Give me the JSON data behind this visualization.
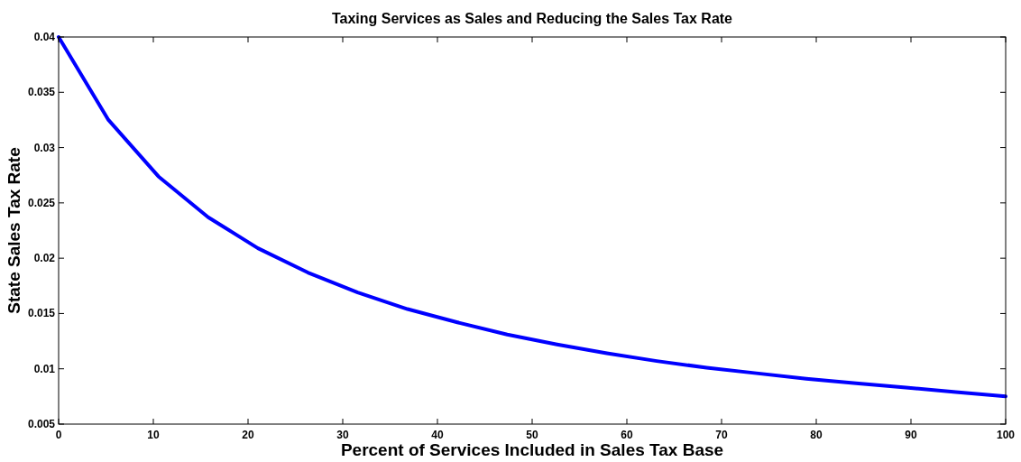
{
  "chart_data": {
    "type": "line",
    "title": "Taxing Services as Sales and Reducing the Sales Tax Rate",
    "xlabel": "Percent of Services Included in Sales Tax Base",
    "ylabel": "State Sales Tax Rate",
    "xlim": [
      0,
      100
    ],
    "xticks": [
      0,
      10,
      20,
      30,
      40,
      50,
      60,
      70,
      80,
      90,
      100
    ],
    "ylim": [
      0.005,
      0.04
    ],
    "yticks": [
      0.005,
      0.01,
      0.015,
      0.02,
      0.025,
      0.03,
      0.035,
      0.04
    ],
    "series": [
      {
        "color": "#0000ff",
        "x": [
          0,
          5.26,
          10.53,
          15.79,
          21.05,
          26.32,
          31.58,
          36.84,
          42.11,
          47.37,
          52.63,
          57.89,
          63.16,
          68.42,
          73.68,
          78.95,
          84.21,
          89.47,
          94.74,
          100
        ],
        "values": [
          0.04,
          0.0325,
          0.0274,
          0.0237,
          0.0209,
          0.0187,
          0.0169,
          0.0154,
          0.0142,
          0.0131,
          0.0122,
          0.0114,
          0.0107,
          0.0101,
          0.0096,
          0.0091,
          0.0087,
          0.0083,
          0.0079,
          0.0075
        ]
      }
    ]
  }
}
